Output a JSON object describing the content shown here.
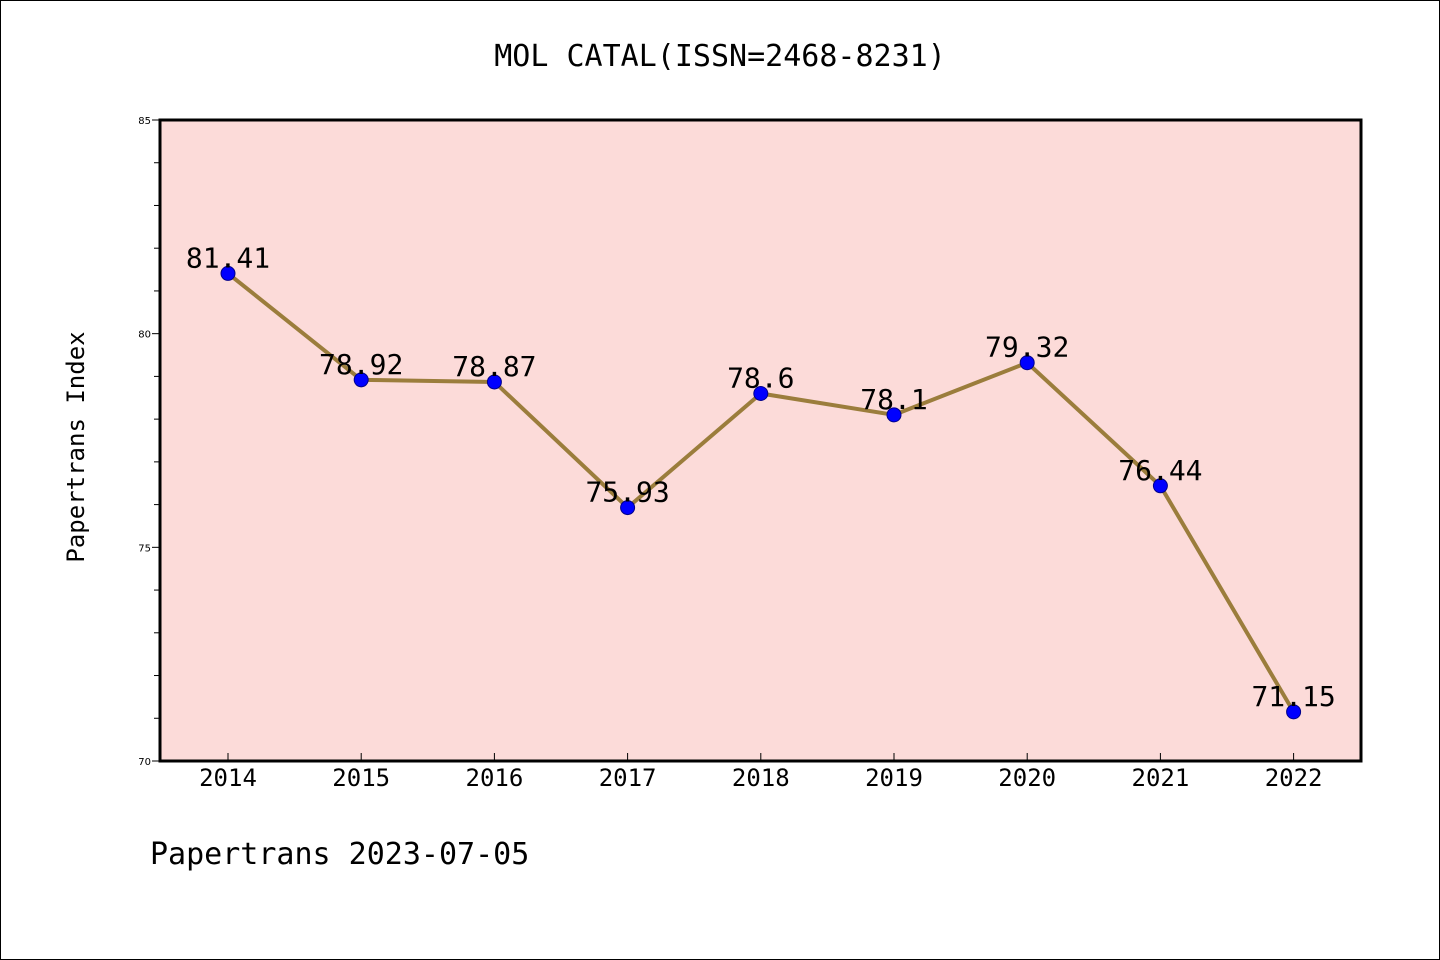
{
  "footer": "Papertrans 2023-07-05",
  "colors": {
    "plot_background": "#fcdbd9",
    "line": "#9b7d3c",
    "marker": "#0000ff",
    "marker_edge": "#00008b",
    "axes": "#000000"
  },
  "chart_data": {
    "type": "line",
    "title": "MOL CATAL(ISSN=2468-8231)",
    "xlabel": "",
    "ylabel": "Papertrans Index",
    "categories": [
      "2014",
      "2015",
      "2016",
      "2017",
      "2018",
      "2019",
      "2020",
      "2021",
      "2022"
    ],
    "series": [
      {
        "values": [
          81.41,
          78.92,
          78.87,
          75.93,
          78.6,
          78.1,
          79.32,
          76.44,
          71.15
        ],
        "data_labels": [
          "81.41",
          "78.92",
          "78.87",
          "75.93",
          "78.6",
          "78.1",
          "79.32",
          "76.44",
          "71.15"
        ]
      }
    ],
    "ylim": [
      70,
      85
    ],
    "yticks": [
      70,
      75,
      80,
      85
    ],
    "ytick_labels": [
      "70",
      "75",
      "80",
      "85"
    ],
    "y_minor_step": 1,
    "grid": false,
    "legend": "none"
  }
}
